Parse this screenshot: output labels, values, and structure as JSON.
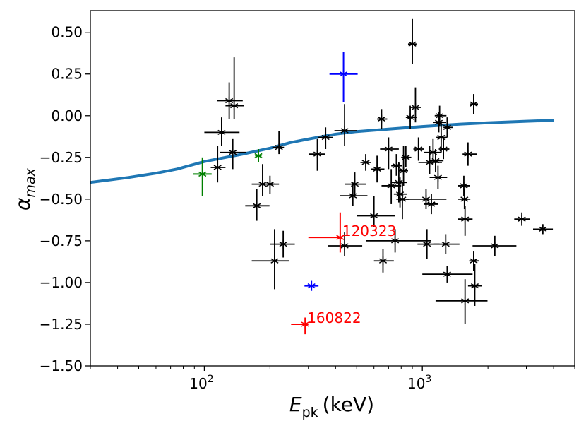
{
  "chart_data": {
    "type": "scatter",
    "title": "",
    "xlabel": {
      "main": "E",
      "sub": "pk",
      "tail": "(keV)"
    },
    "ylabel": {
      "main": "α",
      "sub": "max"
    },
    "xscale": "log",
    "xlim": [
      30,
      5000
    ],
    "ylim": [
      -1.5,
      0.63
    ],
    "grid": false,
    "x_ticks": [
      {
        "value": 100,
        "base": "10",
        "exp": "2"
      },
      {
        "value": 1000,
        "base": "10",
        "exp": "3"
      }
    ],
    "y_ticks": [
      {
        "value": 0.5,
        "label": "0.50"
      },
      {
        "value": 0.25,
        "label": "0.25"
      },
      {
        "value": 0.0,
        "label": "0.00"
      },
      {
        "value": -0.25,
        "label": "−0.25"
      },
      {
        "value": -0.5,
        "label": "−0.50"
      },
      {
        "value": -0.75,
        "label": "−0.75"
      },
      {
        "value": -1.0,
        "label": "−1.00"
      },
      {
        "value": -1.25,
        "label": "−1.25"
      },
      {
        "value": -1.5,
        "label": "−1.50"
      }
    ],
    "colors": {
      "curve": "#1f77b4",
      "black": "#000000",
      "green": "#008000",
      "blue": "#0000ff",
      "red": "#ff0000"
    },
    "curve": {
      "name": "alpha-max-curve",
      "x": [
        30,
        45,
        60,
        75,
        100,
        150,
        200,
        250,
        300,
        400,
        500,
        700,
        1000,
        1500,
        2000,
        3000,
        4000
      ],
      "y": [
        -0.4,
        -0.37,
        -0.345,
        -0.32,
        -0.275,
        -0.23,
        -0.195,
        -0.16,
        -0.14,
        -0.11,
        -0.095,
        -0.08,
        -0.065,
        -0.05,
        -0.042,
        -0.033,
        -0.028
      ]
    },
    "series": [
      {
        "name": "black",
        "color_key": "black",
        "points": [
          {
            "x": 115,
            "y": -0.31,
            "xerr": [
              8,
              10
            ],
            "yerr": [
              0.09,
              0.13
            ]
          },
          {
            "x": 120,
            "y": -0.1,
            "xerr": [
              20,
              25
            ],
            "yerr": [
              0.08,
              0.09
            ]
          },
          {
            "x": 130,
            "y": 0.09,
            "xerr": [
              16,
              20
            ],
            "yerr": [
              0.11,
              0.11
            ]
          },
          {
            "x": 137,
            "y": 0.06,
            "xerr": [
              12,
              15
            ],
            "yerr": [
              0.08,
              0.29
            ]
          },
          {
            "x": 135,
            "y": -0.22,
            "xerr": [
              17,
              20
            ],
            "yerr": [
              0.1,
              0.08
            ]
          },
          {
            "x": 174,
            "y": -0.54,
            "xerr": [
              20,
              25
            ],
            "yerr": [
              0.09,
              0.1
            ]
          },
          {
            "x": 185,
            "y": -0.41,
            "xerr": [
              20,
              25
            ],
            "yerr": [
              0.07,
              0.12
            ]
          },
          {
            "x": 200,
            "y": -0.41,
            "xerr": [
              20,
              20
            ],
            "yerr": [
              0.06,
              0.05
            ]
          },
          {
            "x": 220,
            "y": -0.19,
            "xerr": [
              15,
              12
            ],
            "yerr": [
              0.04,
              0.1
            ]
          },
          {
            "x": 210,
            "y": -0.87,
            "xerr": [
              45,
              35
            ],
            "yerr": [
              0.17,
              0.19
            ]
          },
          {
            "x": 230,
            "y": -0.77,
            "xerr": [
              30,
              30
            ],
            "yerr": [
              0.08,
              0.08
            ]
          },
          {
            "x": 330,
            "y": -0.23,
            "xerr": [
              28,
              28
            ],
            "yerr": [
              0.1,
              0.09
            ]
          },
          {
            "x": 360,
            "y": -0.13,
            "xerr": [
              28,
              30
            ],
            "yerr": [
              0.07,
              0.06
            ]
          },
          {
            "x": 440,
            "y": -0.09,
            "xerr": [
              45,
              60
            ],
            "yerr": [
              0.09,
              0.16
            ]
          },
          {
            "x": 440,
            "y": -0.78,
            "xerr": [
              70,
              90
            ],
            "yerr": [
              0.06,
              0.08
            ]
          },
          {
            "x": 480,
            "y": -0.48,
            "xerr": [
              60,
              80
            ],
            "yerr": [
              0.06,
              0.08
            ]
          },
          {
            "x": 490,
            "y": -0.41,
            "xerr": [
              50,
              60
            ],
            "yerr": [
              0.07,
              0.07
            ]
          },
          {
            "x": 550,
            "y": -0.28,
            "xerr": [
              30,
              30
            ],
            "yerr": [
              0.05,
              0.05
            ]
          },
          {
            "x": 600,
            "y": -0.6,
            "xerr": [
              100,
              150
            ],
            "yerr": [
              0.07,
              0.12
            ]
          },
          {
            "x": 620,
            "y": -0.32,
            "xerr": [
              40,
              50
            ],
            "yerr": [
              0.08,
              0.08
            ]
          },
          {
            "x": 650,
            "y": -0.02,
            "xerr": [
              30,
              40
            ],
            "yerr": [
              0.06,
              0.06
            ]
          },
          {
            "x": 660,
            "y": -0.87,
            "xerr": [
              60,
              80
            ],
            "yerr": [
              0.07,
              0.07
            ]
          },
          {
            "x": 700,
            "y": -0.2,
            "xerr": [
              60,
              80
            ],
            "yerr": [
              0.12,
              0.07
            ]
          },
          {
            "x": 720,
            "y": -0.42,
            "xerr": [
              70,
              80
            ],
            "yerr": [
              0.11,
              0.1
            ]
          },
          {
            "x": 750,
            "y": -0.75,
            "xerr": [
              200,
              350
            ],
            "yerr": [
              0.07,
              0.07
            ]
          },
          {
            "x": 760,
            "y": -0.3,
            "xerr": [
              40,
              50
            ],
            "yerr": [
              0.06,
              0.07
            ]
          },
          {
            "x": 780,
            "y": -0.4,
            "xerr": [
              60,
              70
            ],
            "yerr": [
              0.12,
              0.12
            ]
          },
          {
            "x": 790,
            "y": -0.47,
            "xerr": [
              50,
              60
            ],
            "yerr": [
              0.08,
              0.1
            ]
          },
          {
            "x": 810,
            "y": -0.5,
            "xerr": [
              50,
              60
            ],
            "yerr": [
              0.12,
              0.1
            ]
          },
          {
            "x": 820,
            "y": -0.33,
            "xerr": [
              40,
              40
            ],
            "yerr": [
              0.09,
              0.15
            ]
          },
          {
            "x": 840,
            "y": -0.25,
            "xerr": [
              40,
              50
            ],
            "yerr": [
              0.06,
              0.07
            ]
          },
          {
            "x": 880,
            "y": -0.01,
            "xerr": [
              40,
              60
            ],
            "yerr": [
              0.07,
              0.07
            ]
          },
          {
            "x": 900,
            "y": 0.43,
            "xerr": [
              40,
              40
            ],
            "yerr": [
              0.12,
              0.15
            ]
          },
          {
            "x": 930,
            "y": 0.05,
            "xerr": [
              50,
              60
            ],
            "yerr": [
              0.09,
              0.12
            ]
          },
          {
            "x": 960,
            "y": -0.2,
            "xerr": [
              50,
              60
            ],
            "yerr": [
              0.07,
              0.07
            ]
          },
          {
            "x": 1040,
            "y": -0.5,
            "xerr": [
              200,
              250
            ],
            "yerr": [
              0.06,
              0.06
            ]
          },
          {
            "x": 1050,
            "y": -0.77,
            "xerr": [
              100,
              150
            ],
            "yerr": [
              0.09,
              0.09
            ]
          },
          {
            "x": 1080,
            "y": -0.28,
            "xerr": [
              120,
              150
            ],
            "yerr": [
              0.07,
              0.1
            ]
          },
          {
            "x": 1100,
            "y": -0.53,
            "xerr": [
              80,
              80
            ],
            "yerr": [
              0.06,
              0.06
            ]
          },
          {
            "x": 1120,
            "y": -0.22,
            "xerr": [
              100,
              100
            ],
            "yerr": [
              0.07,
              0.08
            ]
          },
          {
            "x": 1150,
            "y": -0.27,
            "xerr": [
              80,
              100
            ],
            "yerr": [
              0.07,
              0.07
            ]
          },
          {
            "x": 1180,
            "y": -0.37,
            "xerr": [
              100,
              120
            ],
            "yerr": [
              0.07,
              0.07
            ]
          },
          {
            "x": 1190,
            "y": -0.04,
            "xerr": [
              70,
              90
            ],
            "yerr": [
              0.06,
              0.06
            ]
          },
          {
            "x": 1200,
            "y": 0.0,
            "xerr": [
              60,
              90
            ],
            "yerr": [
              0.06,
              0.06
            ]
          },
          {
            "x": 1220,
            "y": -0.13,
            "xerr": [
              60,
              80
            ],
            "yerr": [
              0.09,
              0.09
            ]
          },
          {
            "x": 1250,
            "y": -0.2,
            "xerr": [
              60,
              80
            ],
            "yerr": [
              0.06,
              0.06
            ]
          },
          {
            "x": 1280,
            "y": -0.77,
            "xerr": [
              150,
              200
            ],
            "yerr": [
              0.06,
              0.06
            ]
          },
          {
            "x": 1300,
            "y": -0.07,
            "xerr": [
              50,
              80
            ],
            "yerr": [
              0.06,
              0.06
            ]
          },
          {
            "x": 1300,
            "y": -0.95,
            "xerr": [
              300,
              400
            ],
            "yerr": [
              0.05,
              0.05
            ]
          },
          {
            "x": 1550,
            "y": -0.42,
            "xerr": [
              100,
              100
            ],
            "yerr": [
              0.06,
              0.06
            ]
          },
          {
            "x": 1560,
            "y": -0.5,
            "xerr": [
              100,
              100
            ],
            "yerr": [
              0.06,
              0.06
            ]
          },
          {
            "x": 1570,
            "y": -0.62,
            "xerr": [
              120,
              130
            ],
            "yerr": [
              0.1,
              0.08
            ]
          },
          {
            "x": 1570,
            "y": -1.11,
            "xerr": [
              420,
              420
            ],
            "yerr": [
              0.14,
              0.13
            ]
          },
          {
            "x": 1620,
            "y": -0.23,
            "xerr": [
              90,
              160
            ],
            "yerr": [
              0.07,
              0.07
            ]
          },
          {
            "x": 1720,
            "y": 0.07,
            "xerr": [
              60,
              80
            ],
            "yerr": [
              0.06,
              0.06
            ]
          },
          {
            "x": 1720,
            "y": -0.87,
            "xerr": [
              80,
              100
            ],
            "yerr": [
              0.06,
              0.06
            ]
          },
          {
            "x": 1740,
            "y": -1.02,
            "xerr": [
              120,
              140
            ],
            "yerr": [
              0.12,
              0.13
            ]
          },
          {
            "x": 2150,
            "y": -0.78,
            "xerr": [
              450,
              550
            ],
            "yerr": [
              0.06,
              0.06
            ]
          },
          {
            "x": 2860,
            "y": -0.62,
            "xerr": [
              220,
              260
            ],
            "yerr": [
              0.04,
              0.04
            ]
          },
          {
            "x": 3570,
            "y": -0.68,
            "xerr": [
              350,
              400
            ],
            "yerr": [
              0.03,
              0.03
            ]
          }
        ]
      },
      {
        "name": "green",
        "color_key": "green",
        "points": [
          {
            "x": 98,
            "y": -0.35,
            "xerr": [
              9,
              10
            ],
            "yerr": [
              0.13,
              0.1
            ]
          },
          {
            "x": 177,
            "y": -0.24,
            "xerr": [
              6,
              6
            ],
            "yerr": [
              0.04,
              0.04
            ]
          }
        ]
      },
      {
        "name": "blue",
        "color_key": "blue",
        "points": [
          {
            "x": 435,
            "y": 0.25,
            "xerr": [
              60,
              70
            ],
            "yerr": [
              0.17,
              0.13
            ]
          },
          {
            "x": 310,
            "y": -1.02,
            "xerr": [
              22,
              24
            ],
            "yerr": [
              0.03,
              0.03
            ]
          }
        ]
      },
      {
        "name": "red",
        "color_key": "red",
        "points": [
          {
            "x": 420,
            "y": -0.73,
            "xerr": [
              120,
              10
            ],
            "yerr": [
              0.09,
              0.15
            ],
            "label": "120323"
          },
          {
            "x": 290,
            "y": -1.25,
            "xerr": [
              40,
              10
            ],
            "yerr": [
              0.06,
              0.04
            ],
            "label": "160822"
          }
        ]
      }
    ]
  }
}
